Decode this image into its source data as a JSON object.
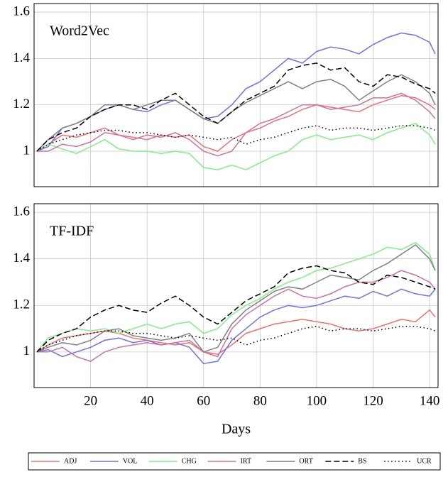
{
  "chart_data": [
    {
      "type": "line",
      "title": "Word2Vec",
      "x": [
        1,
        5,
        10,
        15,
        20,
        25,
        30,
        35,
        40,
        45,
        50,
        55,
        60,
        65,
        70,
        75,
        80,
        85,
        90,
        95,
        100,
        105,
        110,
        115,
        120,
        125,
        130,
        135,
        140,
        142
      ],
      "xlim": [
        0,
        143
      ],
      "xticks": [
        20,
        40,
        60,
        80,
        100,
        120,
        140
      ],
      "ylim": [
        0.847,
        1.637
      ],
      "yticks": [
        1,
        1.2,
        1.4,
        1.6
      ],
      "grid": true,
      "series": [
        {
          "name": "ADJ",
          "color": "#f07070",
          "dash": "solid",
          "values": [
            1.0,
            1.03,
            1.07,
            1.06,
            1.08,
            1.1,
            1.07,
            1.06,
            1.05,
            1.07,
            1.06,
            1.07,
            1.02,
            1.0,
            1.05,
            1.08,
            1.1,
            1.13,
            1.15,
            1.18,
            1.2,
            1.19,
            1.18,
            1.17,
            1.2,
            1.22,
            1.24,
            1.23,
            1.2,
            1.18
          ]
        },
        {
          "name": "VOL",
          "color": "#7070f0",
          "dash": "solid",
          "values": [
            1.0,
            1.02,
            1.1,
            1.12,
            1.15,
            1.18,
            1.2,
            1.18,
            1.17,
            1.2,
            1.22,
            1.18,
            1.14,
            1.15,
            1.2,
            1.27,
            1.3,
            1.35,
            1.4,
            1.38,
            1.43,
            1.45,
            1.44,
            1.42,
            1.46,
            1.49,
            1.51,
            1.5,
            1.47,
            1.42
          ]
        },
        {
          "name": "CHG",
          "color": "#80f080",
          "dash": "solid",
          "values": [
            1.0,
            1.03,
            1.01,
            0.99,
            1.02,
            1.05,
            1.01,
            1.0,
            1.0,
            0.99,
            1.0,
            0.99,
            0.93,
            0.92,
            0.94,
            0.92,
            0.95,
            0.98,
            1.0,
            1.05,
            1.07,
            1.05,
            1.06,
            1.07,
            1.05,
            1.08,
            1.1,
            1.12,
            1.07,
            1.03
          ]
        },
        {
          "name": "IRT",
          "color": "#d070a0",
          "dash": "solid",
          "values": [
            1.0,
            1.0,
            1.03,
            1.02,
            1.04,
            1.08,
            1.07,
            1.05,
            1.07,
            1.06,
            1.08,
            1.05,
            1.0,
            0.98,
            1.0,
            1.08,
            1.12,
            1.14,
            1.17,
            1.2,
            1.2,
            1.18,
            1.19,
            1.2,
            1.23,
            1.23,
            1.25,
            1.22,
            1.17,
            1.14
          ]
        },
        {
          "name": "ORT",
          "color": "#808080",
          "dash": "solid",
          "values": [
            1.0,
            1.05,
            1.1,
            1.12,
            1.15,
            1.2,
            1.2,
            1.18,
            1.2,
            1.22,
            1.22,
            1.18,
            1.14,
            1.12,
            1.17,
            1.21,
            1.24,
            1.27,
            1.3,
            1.27,
            1.3,
            1.31,
            1.28,
            1.22,
            1.26,
            1.3,
            1.33,
            1.3,
            1.25,
            1.2
          ]
        },
        {
          "name": "BS",
          "color": "#000000",
          "dash": "dashed",
          "values": [
            1.0,
            1.05,
            1.08,
            1.1,
            1.15,
            1.18,
            1.2,
            1.2,
            1.18,
            1.22,
            1.25,
            1.2,
            1.15,
            1.12,
            1.17,
            1.22,
            1.25,
            1.28,
            1.35,
            1.37,
            1.38,
            1.35,
            1.36,
            1.3,
            1.28,
            1.33,
            1.32,
            1.29,
            1.27,
            1.25
          ]
        },
        {
          "name": "UCR",
          "color": "#000000",
          "dash": "dotted",
          "values": [
            1.0,
            1.03,
            1.05,
            1.07,
            1.08,
            1.09,
            1.09,
            1.08,
            1.08,
            1.07,
            1.06,
            1.07,
            1.06,
            1.05,
            1.06,
            1.03,
            1.05,
            1.06,
            1.08,
            1.1,
            1.11,
            1.09,
            1.1,
            1.1,
            1.09,
            1.1,
            1.11,
            1.11,
            1.1,
            1.09
          ]
        }
      ]
    },
    {
      "type": "line",
      "title": "TF-IDF",
      "xlabel": "Days",
      "x": [
        1,
        5,
        10,
        15,
        20,
        25,
        30,
        35,
        40,
        45,
        50,
        55,
        60,
        65,
        70,
        75,
        80,
        85,
        90,
        95,
        100,
        105,
        110,
        115,
        120,
        125,
        130,
        135,
        140,
        142
      ],
      "xlim": [
        0,
        143
      ],
      "xticks": [
        20,
        40,
        60,
        80,
        100,
        120,
        140
      ],
      "ylim": [
        0.847,
        1.637
      ],
      "yticks": [
        1,
        1.2,
        1.4,
        1.6
      ],
      "grid": true,
      "series": [
        {
          "color": "#f07070",
          "dash": "solid",
          "values": [
            1.0,
            1.03,
            1.06,
            1.07,
            1.08,
            1.09,
            1.08,
            1.06,
            1.05,
            1.04,
            1.03,
            1.04,
            1.0,
            0.99,
            1.03,
            1.08,
            1.1,
            1.12,
            1.13,
            1.14,
            1.13,
            1.12,
            1.1,
            1.09,
            1.1,
            1.12,
            1.14,
            1.13,
            1.18,
            1.15
          ]
        },
        {
          "color": "#7070f0",
          "dash": "solid",
          "values": [
            1.0,
            1.01,
            0.98,
            1.0,
            1.02,
            1.05,
            1.06,
            1.04,
            1.05,
            1.03,
            1.04,
            1.02,
            0.95,
            0.96,
            1.05,
            1.1,
            1.15,
            1.18,
            1.2,
            1.19,
            1.2,
            1.22,
            1.24,
            1.23,
            1.26,
            1.24,
            1.27,
            1.25,
            1.24,
            1.27
          ]
        },
        {
          "color": "#80f080",
          "dash": "solid",
          "values": [
            1.0,
            1.06,
            1.08,
            1.1,
            1.09,
            1.1,
            1.08,
            1.1,
            1.12,
            1.1,
            1.12,
            1.13,
            1.08,
            1.1,
            1.16,
            1.2,
            1.23,
            1.27,
            1.3,
            1.32,
            1.35,
            1.36,
            1.38,
            1.4,
            1.42,
            1.45,
            1.44,
            1.47,
            1.42,
            1.35
          ]
        },
        {
          "color": "#d070a0",
          "dash": "solid",
          "values": [
            1.0,
            1.0,
            1.02,
            0.98,
            0.96,
            1.0,
            1.02,
            1.03,
            1.04,
            1.03,
            1.04,
            1.05,
            1.0,
            0.98,
            1.1,
            1.16,
            1.2,
            1.24,
            1.27,
            1.24,
            1.23,
            1.25,
            1.28,
            1.3,
            1.3,
            1.32,
            1.35,
            1.33,
            1.3,
            1.27
          ]
        },
        {
          "color": "#808080",
          "dash": "solid",
          "values": [
            1.0,
            1.02,
            1.04,
            1.03,
            1.05,
            1.09,
            1.1,
            1.07,
            1.06,
            1.05,
            1.06,
            1.08,
            1.0,
            1.02,
            1.12,
            1.18,
            1.22,
            1.26,
            1.28,
            1.27,
            1.3,
            1.33,
            1.32,
            1.31,
            1.35,
            1.38,
            1.42,
            1.46,
            1.4,
            1.35
          ]
        },
        {
          "color": "#000000",
          "dash": "dashed",
          "values": [
            1.0,
            1.05,
            1.08,
            1.1,
            1.15,
            1.18,
            1.2,
            1.18,
            1.17,
            1.21,
            1.24,
            1.2,
            1.15,
            1.12,
            1.17,
            1.22,
            1.25,
            1.28,
            1.34,
            1.36,
            1.37,
            1.35,
            1.34,
            1.3,
            1.29,
            1.33,
            1.32,
            1.3,
            1.28,
            1.27
          ]
        },
        {
          "color": "#000000",
          "dash": "dotted",
          "values": [
            1.0,
            1.03,
            1.05,
            1.07,
            1.08,
            1.09,
            1.09,
            1.08,
            1.08,
            1.07,
            1.06,
            1.07,
            1.06,
            1.05,
            1.06,
            1.03,
            1.05,
            1.06,
            1.08,
            1.1,
            1.11,
            1.09,
            1.1,
            1.1,
            1.09,
            1.1,
            1.11,
            1.11,
            1.1,
            1.09
          ]
        }
      ]
    }
  ]
}
